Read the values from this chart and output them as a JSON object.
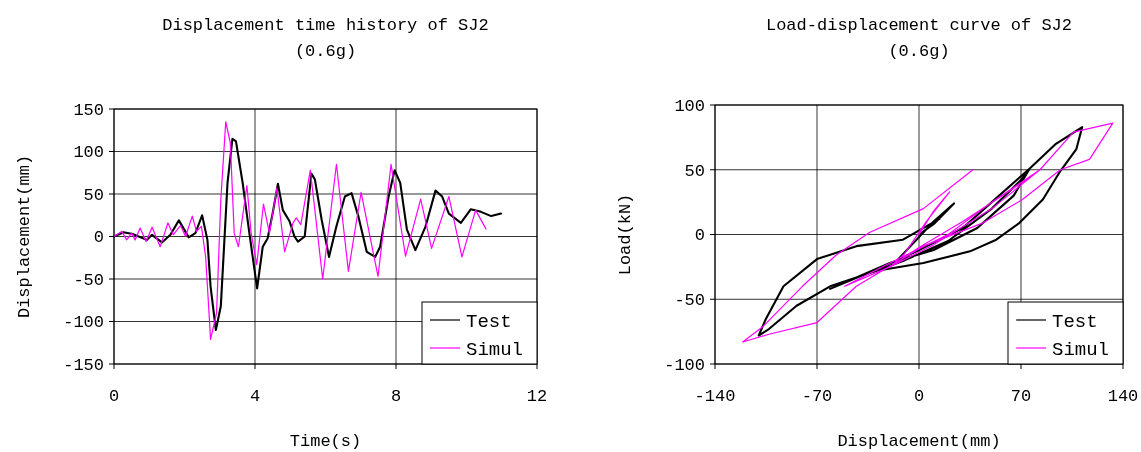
{
  "chart_data": [
    {
      "type": "line",
      "title": "Displacement time history of SJ2",
      "subtitle": "(0.6g)",
      "xlabel": "Time(s)",
      "ylabel": "Displacement(mm)",
      "xlim": [
        0,
        12
      ],
      "xticks": [
        0,
        4,
        8,
        12
      ],
      "ylim": [
        -150,
        150
      ],
      "yticks": [
        -150,
        -100,
        -50,
        0,
        50,
        100,
        150
      ],
      "grid": true,
      "legend": "bottom right",
      "series": [
        {
          "name": "Test",
          "color": "#000000",
          "x": [
            0,
            0.27,
            0.53,
            0.93,
            1.08,
            1.36,
            1.6,
            1.84,
            2.12,
            2.31,
            2.5,
            2.65,
            2.74,
            2.89,
            3.03,
            3.22,
            3.36,
            3.46,
            3.65,
            3.84,
            4.06,
            4.22,
            4.36,
            4.5,
            4.65,
            4.79,
            4.98,
            5.12,
            5.22,
            5.41,
            5.6,
            5.7,
            5.89,
            6.1,
            6.31,
            6.55,
            6.74,
            6.93,
            7.17,
            7.41,
            7.55,
            7.79,
            7.96,
            8.12,
            8.31,
            8.55,
            8.84,
            9.12,
            9.31,
            9.5,
            9.84,
            10.12,
            10.41,
            10.7,
            10.98
          ],
          "values": [
            0,
            5,
            3,
            -4,
            2,
            -7,
            2,
            19,
            -1,
            4,
            25,
            -4,
            -59,
            -110,
            -82,
            63,
            115,
            112,
            63,
            4,
            -61,
            -12,
            -2,
            27,
            62,
            31,
            18,
            0,
            -6,
            0,
            74,
            67,
            20,
            -24,
            12,
            47,
            51,
            24,
            -18,
            -24,
            -12,
            47,
            78,
            63,
            8,
            -16,
            12,
            54,
            47,
            27,
            16,
            32,
            29,
            24,
            27
          ]
        },
        {
          "name": "Simul",
          "color": "#ff00ff",
          "x": [
            0,
            0.22,
            0.36,
            0.5,
            0.6,
            0.74,
            0.91,
            1.08,
            1.31,
            1.53,
            1.68,
            1.89,
            2.03,
            2.22,
            2.34,
            2.48,
            2.6,
            2.74,
            2.91,
            3.03,
            3.17,
            3.3,
            3.41,
            3.53,
            3.77,
            3.89,
            4.05,
            4.24,
            4.41,
            4.62,
            4.84,
            5.08,
            5.17,
            5.3,
            5.57,
            5.92,
            6.31,
            6.65,
            7.01,
            7.49,
            7.86,
            8.27,
            8.7,
            9.01,
            9.5,
            9.87,
            10.26,
            10.55
          ],
          "values": [
            0,
            6,
            -4,
            4,
            -4,
            10,
            -6,
            11,
            -12,
            16,
            2,
            13,
            0,
            24,
            6,
            12,
            -24,
            -121,
            -90,
            43,
            135,
            110,
            4,
            -12,
            60,
            4,
            -33,
            38,
            4,
            57,
            -18,
            16,
            22,
            14,
            78,
            -50,
            85,
            -41,
            52,
            -47,
            85,
            -23,
            44,
            -14,
            47,
            -24,
            31,
            9
          ]
        }
      ]
    },
    {
      "type": "line",
      "title": "Load-displacement curve of SJ2",
      "subtitle": "(0.6g)",
      "xlabel": "Displacement(mm)",
      "ylabel": "Load(kN)",
      "xlim": [
        -140,
        140
      ],
      "xticks": [
        -140,
        -70,
        0,
        70,
        140
      ],
      "ylim": [
        -100,
        100
      ],
      "yticks": [
        -100,
        -50,
        0,
        50,
        100
      ],
      "grid": true,
      "legend": "bottom right",
      "series": [
        {
          "name": "Test",
          "color": "#000000",
          "x": [
            0,
            10,
            24,
            10,
            -5,
            -15,
            0,
            30,
            55,
            76,
            65,
            40,
            10,
            -20,
            -61,
            -40,
            -10,
            20,
            50,
            70,
            76,
            94,
            112,
            108,
            97,
            85,
            69,
            53,
            35,
            3,
            -29,
            -61,
            -84,
            -103,
            -110,
            -105,
            -93,
            -70,
            -43,
            -11,
            14
          ],
          "values": [
            0,
            8,
            24,
            10,
            -8,
            -20,
            -12,
            5,
            30,
            51,
            30,
            5,
            -12,
            -22,
            -42,
            -32,
            -20,
            -5,
            20,
            42,
            51,
            70,
            83,
            66,
            49,
            27,
            9,
            -4,
            -13,
            -22,
            -28,
            -40,
            -55,
            -73,
            -78,
            -65,
            -40,
            -19,
            -9,
            -4,
            12
          ]
        },
        {
          "name": "Simul",
          "color": "#ff00ff",
          "x": [
            0,
            10,
            21,
            5,
            -10,
            -20,
            0,
            30,
            60,
            83,
            50,
            10,
            -20,
            -51,
            -20,
            20,
            50,
            83,
            106,
            133,
            117,
            97,
            71,
            44,
            3,
            -43,
            -70,
            -103,
            -121,
            -107,
            -80,
            -57,
            -34,
            3,
            37
          ],
          "values": [
            0,
            18,
            33,
            10,
            -15,
            -25,
            -10,
            10,
            32,
            50,
            20,
            -8,
            -25,
            -40,
            -22,
            0,
            25,
            50,
            79,
            86,
            58,
            50,
            27,
            9,
            -9,
            -40,
            -68,
            -77,
            -83,
            -71,
            -40,
            -16,
            1.5,
            20,
            50
          ]
        }
      ]
    }
  ]
}
